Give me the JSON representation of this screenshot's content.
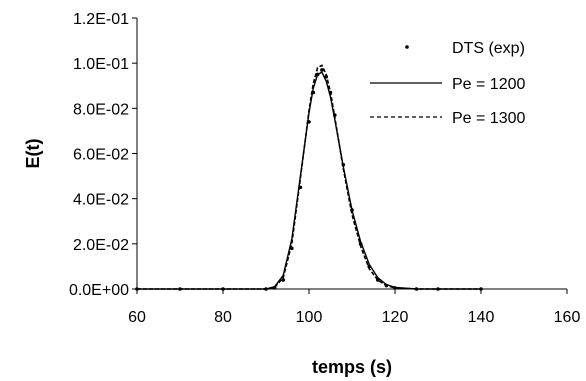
{
  "chart_data": {
    "type": "line",
    "xlabel": "temps (s)",
    "ylabel": "E(t)",
    "xlim": [
      60,
      160
    ],
    "ylim": [
      0,
      0.12
    ],
    "x_ticks": [
      "60",
      "80",
      "100",
      "120",
      "140",
      "160"
    ],
    "x_tick_values": [
      60,
      80,
      100,
      120,
      140,
      160
    ],
    "y_ticks": [
      "0.0E+00",
      "2.0E-02",
      "4.0E-02",
      "6.0E-02",
      "8.0E-02",
      "1.0E-01",
      "1.2E-01"
    ],
    "y_tick_values": [
      0,
      0.02,
      0.04,
      0.06,
      0.08,
      0.1,
      0.12
    ],
    "grid": false,
    "legend_position": "top-right",
    "series": [
      {
        "name": "DTS (exp)",
        "style": "markers",
        "x": [
          60,
          70,
          80,
          90,
          92,
          94,
          96,
          98,
          100,
          101,
          102,
          103,
          104,
          105,
          106,
          108,
          110,
          112,
          114,
          116,
          118,
          120,
          125,
          130,
          140
        ],
        "y": [
          0,
          0,
          0,
          0,
          0.0005,
          0.004,
          0.018,
          0.045,
          0.074,
          0.087,
          0.095,
          0.097,
          0.094,
          0.087,
          0.077,
          0.055,
          0.035,
          0.02,
          0.01,
          0.004,
          0.0015,
          0.0005,
          0,
          0,
          0
        ]
      },
      {
        "name": "Pe = 1200",
        "style": "solid",
        "x": [
          60,
          70,
          80,
          90,
          92,
          94,
          96,
          98,
          100,
          101,
          102,
          103,
          104,
          105,
          106,
          108,
          110,
          112,
          114,
          116,
          118,
          120,
          125,
          130,
          140
        ],
        "y": [
          0,
          0,
          0,
          0,
          0.001,
          0.006,
          0.022,
          0.05,
          0.078,
          0.089,
          0.095,
          0.096,
          0.092,
          0.085,
          0.075,
          0.054,
          0.035,
          0.021,
          0.011,
          0.005,
          0.002,
          0.0007,
          0,
          0,
          0
        ]
      },
      {
        "name": "Pe = 1300",
        "style": "dashed",
        "x": [
          60,
          70,
          80,
          90,
          92,
          94,
          96,
          98,
          100,
          101,
          102,
          103,
          104,
          105,
          106,
          108,
          110,
          112,
          114,
          116,
          118,
          120,
          125,
          130,
          140
        ],
        "y": [
          0,
          0,
          0,
          0,
          0.0007,
          0.005,
          0.02,
          0.049,
          0.079,
          0.091,
          0.098,
          0.099,
          0.095,
          0.087,
          0.076,
          0.053,
          0.033,
          0.019,
          0.009,
          0.004,
          0.0015,
          0.0005,
          0,
          0,
          0
        ]
      }
    ]
  }
}
